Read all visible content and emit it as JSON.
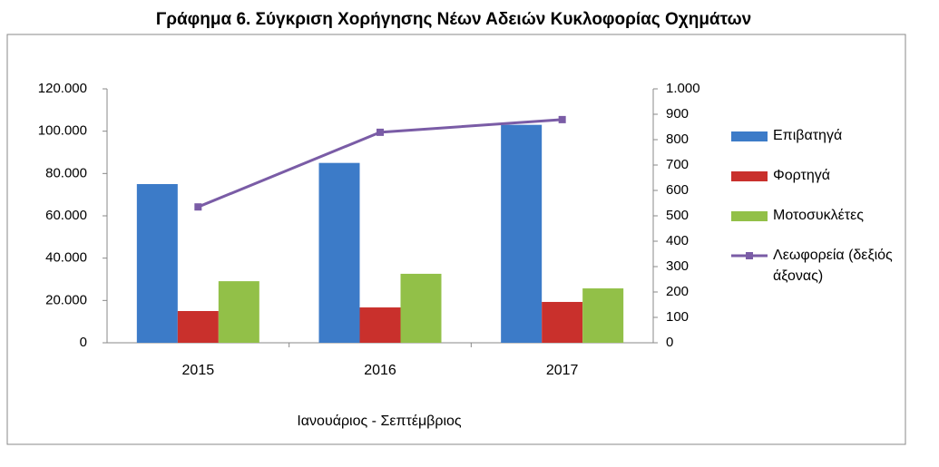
{
  "chart_data": {
    "type": "bar",
    "title": "Γράφημα 6. Σύγκριση Χορήγησης Νέων Αδειών Κυκλοφορίας Οχημάτων",
    "x_label": "Ιανουάριος - Σεπτέμβριος",
    "categories": [
      "2015",
      "2016",
      "2017"
    ],
    "series": [
      {
        "name": "Επιβατηγά",
        "color": "#3c7bc8",
        "values": [
          75000,
          85000,
          103000
        ]
      },
      {
        "name": "Φορτηγά",
        "color": "#c9302c",
        "values": [
          15000,
          16700,
          19300
        ]
      },
      {
        "name": "Μοτοσυκλέτες",
        "color": "#92c048",
        "values": [
          29100,
          32600,
          25700
        ]
      },
      {
        "name": "Λεωφορεία (δεξιός άξονας)",
        "color": "#7a5ca6",
        "type": "line",
        "axis": "y2",
        "values": [
          535,
          829,
          879
        ]
      }
    ],
    "ylim": [
      0,
      120000
    ],
    "yticks": [
      0,
      {
        "value": 20000,
        "label": "20.000"
      },
      {
        "value": 40000,
        "label": "40.000"
      },
      {
        "value": 60000,
        "label": "60.000"
      },
      {
        "value": 80000,
        "label": "80.000"
      },
      {
        "value": 100000,
        "label": "100.000"
      },
      {
        "value": 120000,
        "label": "120.000"
      }
    ],
    "y2lim": [
      0,
      1000
    ],
    "y2ticks": [
      0,
      100,
      200,
      300,
      400,
      500,
      600,
      700,
      800,
      900,
      {
        "value": 1000,
        "label": "1.000"
      }
    ],
    "grid": false,
    "legend": "right"
  }
}
